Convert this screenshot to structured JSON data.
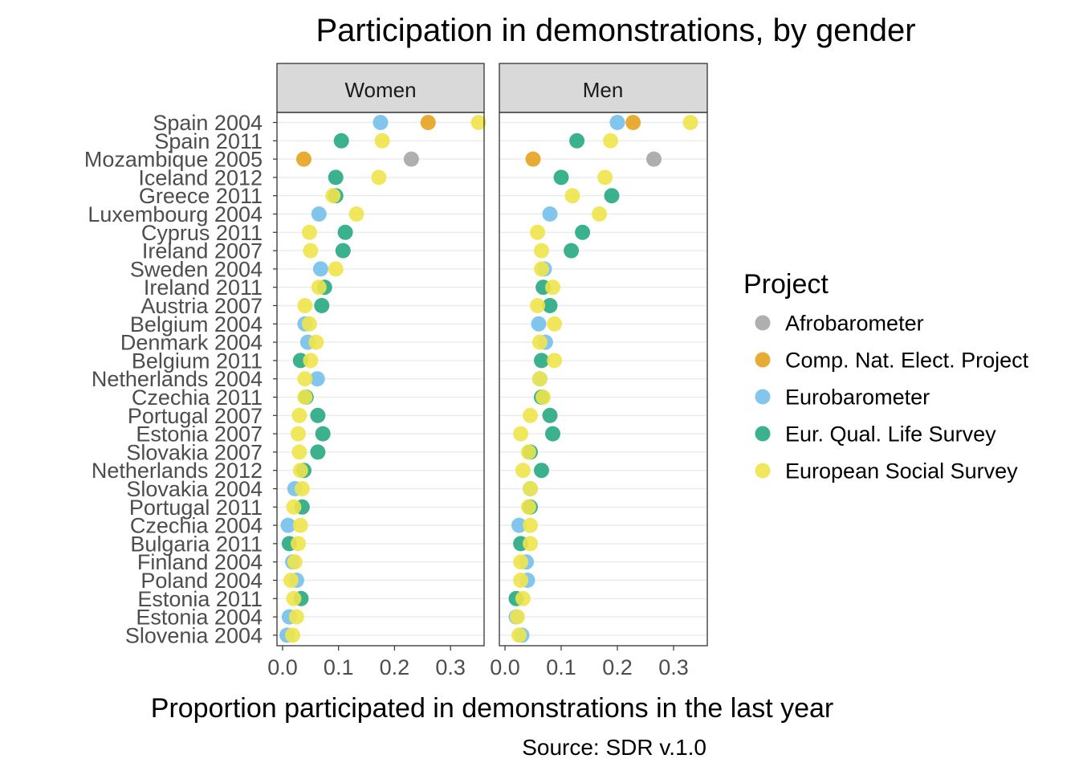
{
  "chart_data": {
    "type": "scatter",
    "title": "Participation in demonstrations, by gender",
    "xlabel": "Proportion participated in demonstrations in the last year",
    "caption": "Source: SDR v.1.0",
    "xlim": [
      -0.01,
      0.36
    ],
    "x_ticks": [
      0.0,
      0.1,
      0.2,
      0.3
    ],
    "x_tick_labels": [
      "0.0",
      "0.1",
      "0.2",
      "0.3"
    ],
    "grid": true,
    "legend": {
      "title": "Project",
      "position": "right"
    },
    "categories": [
      "Spain 2004",
      "Spain 2011",
      "Mozambique 2005",
      "Iceland 2012",
      "Greece 2011",
      "Luxembourg 2004",
      "Cyprus 2011",
      "Ireland 2007",
      "Sweden 2004",
      "Ireland 2011",
      "Austria 2007",
      "Belgium 2004",
      "Denmark 2004",
      "Belgium 2011",
      "Netherlands 2004",
      "Czechia 2011",
      "Portugal 2007",
      "Estonia 2007",
      "Slovakia 2007",
      "Netherlands 2012",
      "Slovakia 2004",
      "Portugal 2011",
      "Czechia 2004",
      "Bulgaria 2011",
      "Finland 2004",
      "Poland 2004",
      "Estonia 2011",
      "Estonia 2004",
      "Slovenia 2004"
    ],
    "panels": [
      "Women",
      "Men"
    ],
    "series": [
      {
        "name": "Afrobarometer",
        "color": "#a6a6a6",
        "values": {
          "Women": [
            null,
            null,
            0.23,
            null,
            null,
            null,
            null,
            null,
            null,
            null,
            null,
            null,
            null,
            null,
            null,
            null,
            null,
            null,
            null,
            null,
            null,
            null,
            null,
            null,
            null,
            null,
            null,
            null,
            null
          ],
          "Men": [
            null,
            null,
            0.265,
            null,
            null,
            null,
            null,
            null,
            null,
            null,
            null,
            null,
            null,
            null,
            null,
            null,
            null,
            null,
            null,
            null,
            null,
            null,
            null,
            null,
            null,
            null,
            null,
            null,
            null
          ]
        }
      },
      {
        "name": "Comp. Nat. Elect. Project",
        "color": "#e6a31e",
        "values": {
          "Women": [
            0.26,
            null,
            0.038,
            null,
            null,
            null,
            null,
            null,
            null,
            null,
            null,
            null,
            null,
            null,
            null,
            null,
            null,
            null,
            null,
            null,
            null,
            null,
            null,
            null,
            null,
            null,
            null,
            null,
            null
          ],
          "Men": [
            0.228,
            null,
            0.05,
            null,
            null,
            null,
            null,
            null,
            null,
            null,
            null,
            null,
            null,
            null,
            null,
            null,
            null,
            null,
            null,
            null,
            null,
            null,
            null,
            null,
            null,
            null,
            null,
            null,
            null
          ]
        }
      },
      {
        "name": "Eurobarometer",
        "color": "#74c0ec",
        "values": {
          "Women": [
            0.175,
            null,
            null,
            null,
            null,
            0.065,
            null,
            null,
            0.068,
            null,
            null,
            0.04,
            0.045,
            null,
            0.062,
            null,
            null,
            null,
            null,
            null,
            0.022,
            null,
            0.01,
            null,
            0.018,
            0.025,
            null,
            0.012,
            0.008
          ],
          "Men": [
            0.2,
            null,
            null,
            null,
            null,
            0.08,
            null,
            null,
            0.07,
            null,
            null,
            0.06,
            0.072,
            null,
            0.062,
            null,
            null,
            null,
            null,
            null,
            0.045,
            null,
            0.025,
            null,
            0.038,
            0.04,
            null,
            0.02,
            0.03
          ]
        }
      },
      {
        "name": "Eur. Qual. Life Survey",
        "color": "#26a882",
        "values": {
          "Women": [
            null,
            0.105,
            null,
            0.095,
            0.095,
            null,
            0.112,
            0.108,
            null,
            0.075,
            0.07,
            null,
            null,
            0.032,
            null,
            0.042,
            0.063,
            0.072,
            0.063,
            0.038,
            null,
            0.035,
            null,
            0.012,
            null,
            null,
            0.033,
            null,
            null
          ],
          "Men": [
            null,
            0.128,
            null,
            0.1,
            0.19,
            null,
            0.138,
            0.118,
            null,
            0.068,
            0.08,
            null,
            null,
            0.065,
            null,
            0.065,
            0.08,
            0.085,
            0.045,
            0.065,
            null,
            0.045,
            null,
            0.028,
            null,
            null,
            0.02,
            null,
            null
          ]
        }
      },
      {
        "name": "European Social Survey",
        "color": "#f0e44b",
        "values": {
          "Women": [
            0.35,
            0.178,
            null,
            0.172,
            0.09,
            0.132,
            0.048,
            0.05,
            0.095,
            0.065,
            0.04,
            0.048,
            0.06,
            0.05,
            0.04,
            0.04,
            0.03,
            0.028,
            0.03,
            0.032,
            0.035,
            0.02,
            0.032,
            0.028,
            0.022,
            0.015,
            0.02,
            0.025,
            0.018
          ],
          "Men": [
            0.33,
            0.188,
            null,
            0.178,
            0.12,
            0.168,
            0.058,
            0.065,
            0.065,
            0.085,
            0.058,
            0.088,
            0.062,
            0.088,
            0.062,
            0.068,
            0.045,
            0.028,
            0.042,
            0.032,
            0.045,
            0.042,
            0.045,
            0.045,
            0.028,
            0.028,
            0.032,
            0.022,
            0.025
          ]
        }
      }
    ]
  }
}
